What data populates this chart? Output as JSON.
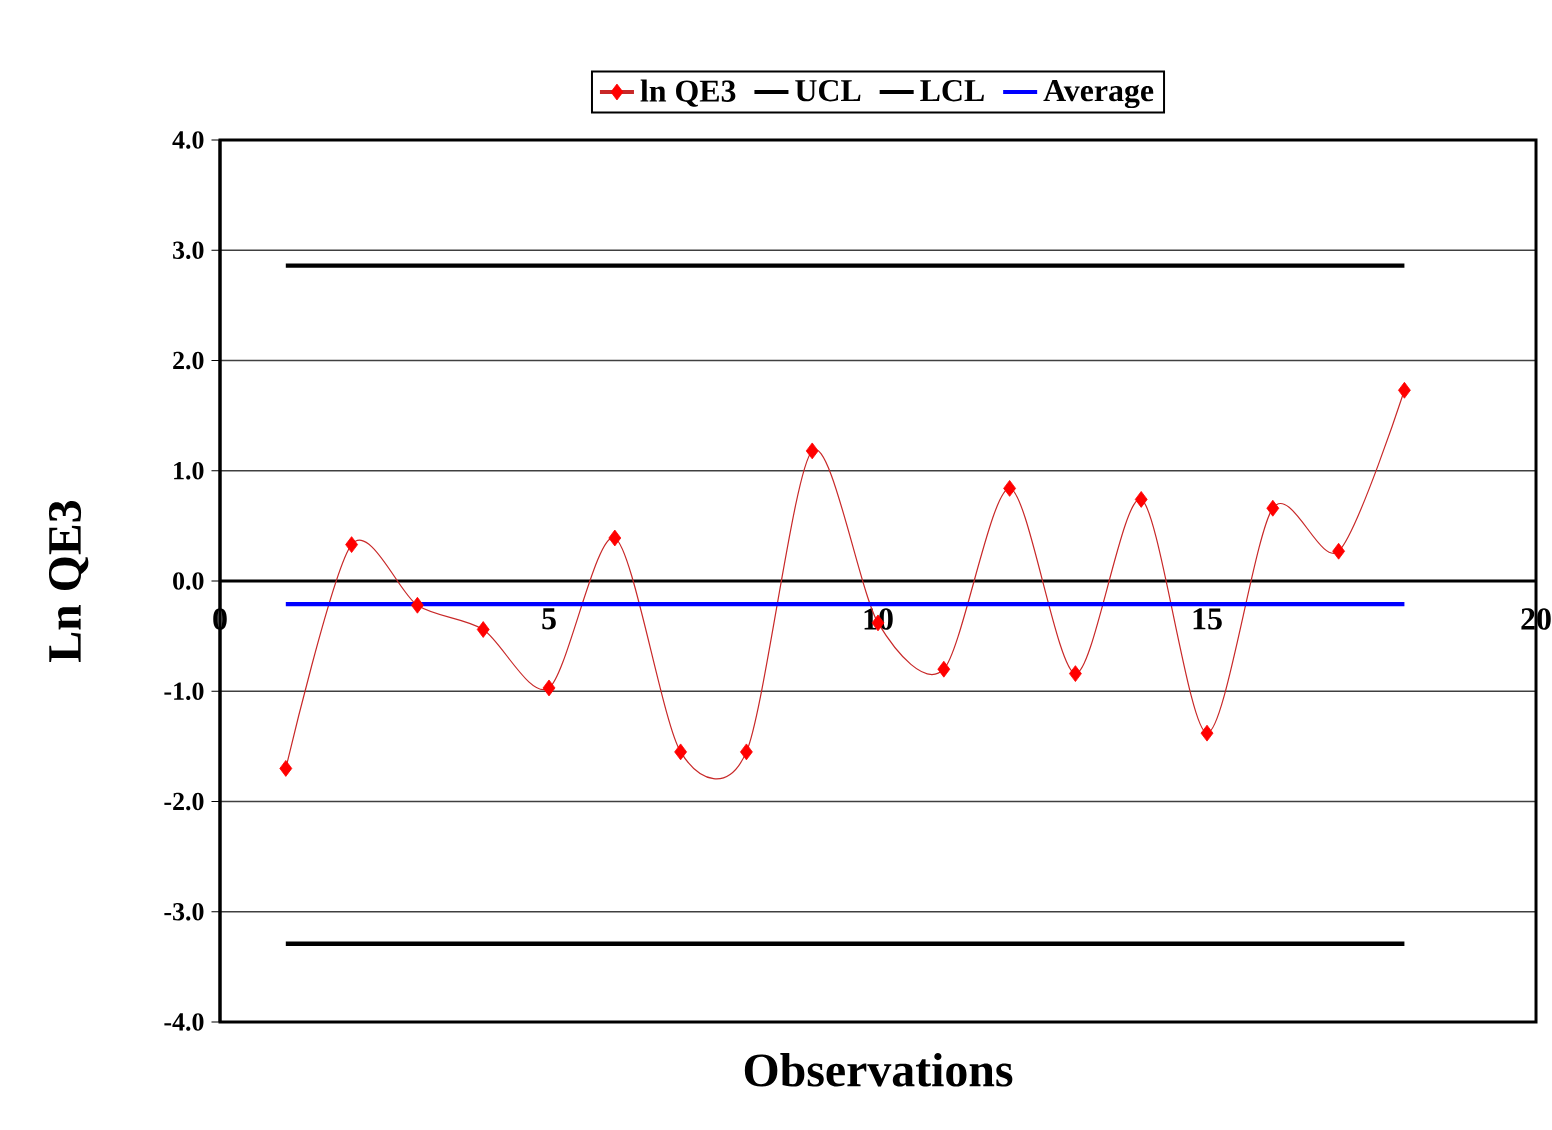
{
  "chart_data": {
    "type": "line",
    "xlabel": "Observations",
    "ylabel": "Ln QE3",
    "xlim": [
      0,
      20
    ],
    "xticks": [
      0,
      5,
      10,
      15,
      20
    ],
    "ylim": [
      -4,
      4
    ],
    "yticks": [
      {
        "value": -4,
        "label": "-4.0"
      },
      {
        "value": -3,
        "label": "-3.0"
      },
      {
        "value": -2,
        "label": "-2.0"
      },
      {
        "value": -1,
        "label": "-1.0"
      },
      {
        "value": 0,
        "label": "0.0"
      },
      {
        "value": 1,
        "label": "1.0"
      },
      {
        "value": 2,
        "label": "2.0"
      },
      {
        "value": 3,
        "label": "3.0"
      },
      {
        "value": 4,
        "label": "4.0"
      }
    ],
    "grid": "y",
    "legend": "top",
    "series": [
      {
        "name": "ln QE3",
        "color": "#ff0000",
        "marker": "diamond",
        "x": [
          1,
          2,
          3,
          4,
          5,
          6,
          7,
          8,
          9,
          10,
          11,
          12,
          13,
          14,
          15,
          16,
          17,
          18
        ],
        "values": [
          -1.7,
          0.33,
          -0.22,
          -0.44,
          -0.97,
          0.39,
          -1.55,
          -1.55,
          1.18,
          -0.38,
          -0.8,
          0.84,
          -0.84,
          0.74,
          -1.38,
          0.66,
          0.27,
          1.73
        ]
      },
      {
        "name": "UCL",
        "color": "#000000",
        "x": [
          1,
          18
        ],
        "values": [
          2.86,
          2.86
        ]
      },
      {
        "name": "LCL",
        "color": "#000000",
        "x": [
          1,
          18
        ],
        "values": [
          -3.29,
          -3.29
        ]
      },
      {
        "name": "Average",
        "color": "#0000ff",
        "x": [
          1,
          18
        ],
        "values": [
          -0.21,
          -0.21
        ]
      }
    ]
  }
}
